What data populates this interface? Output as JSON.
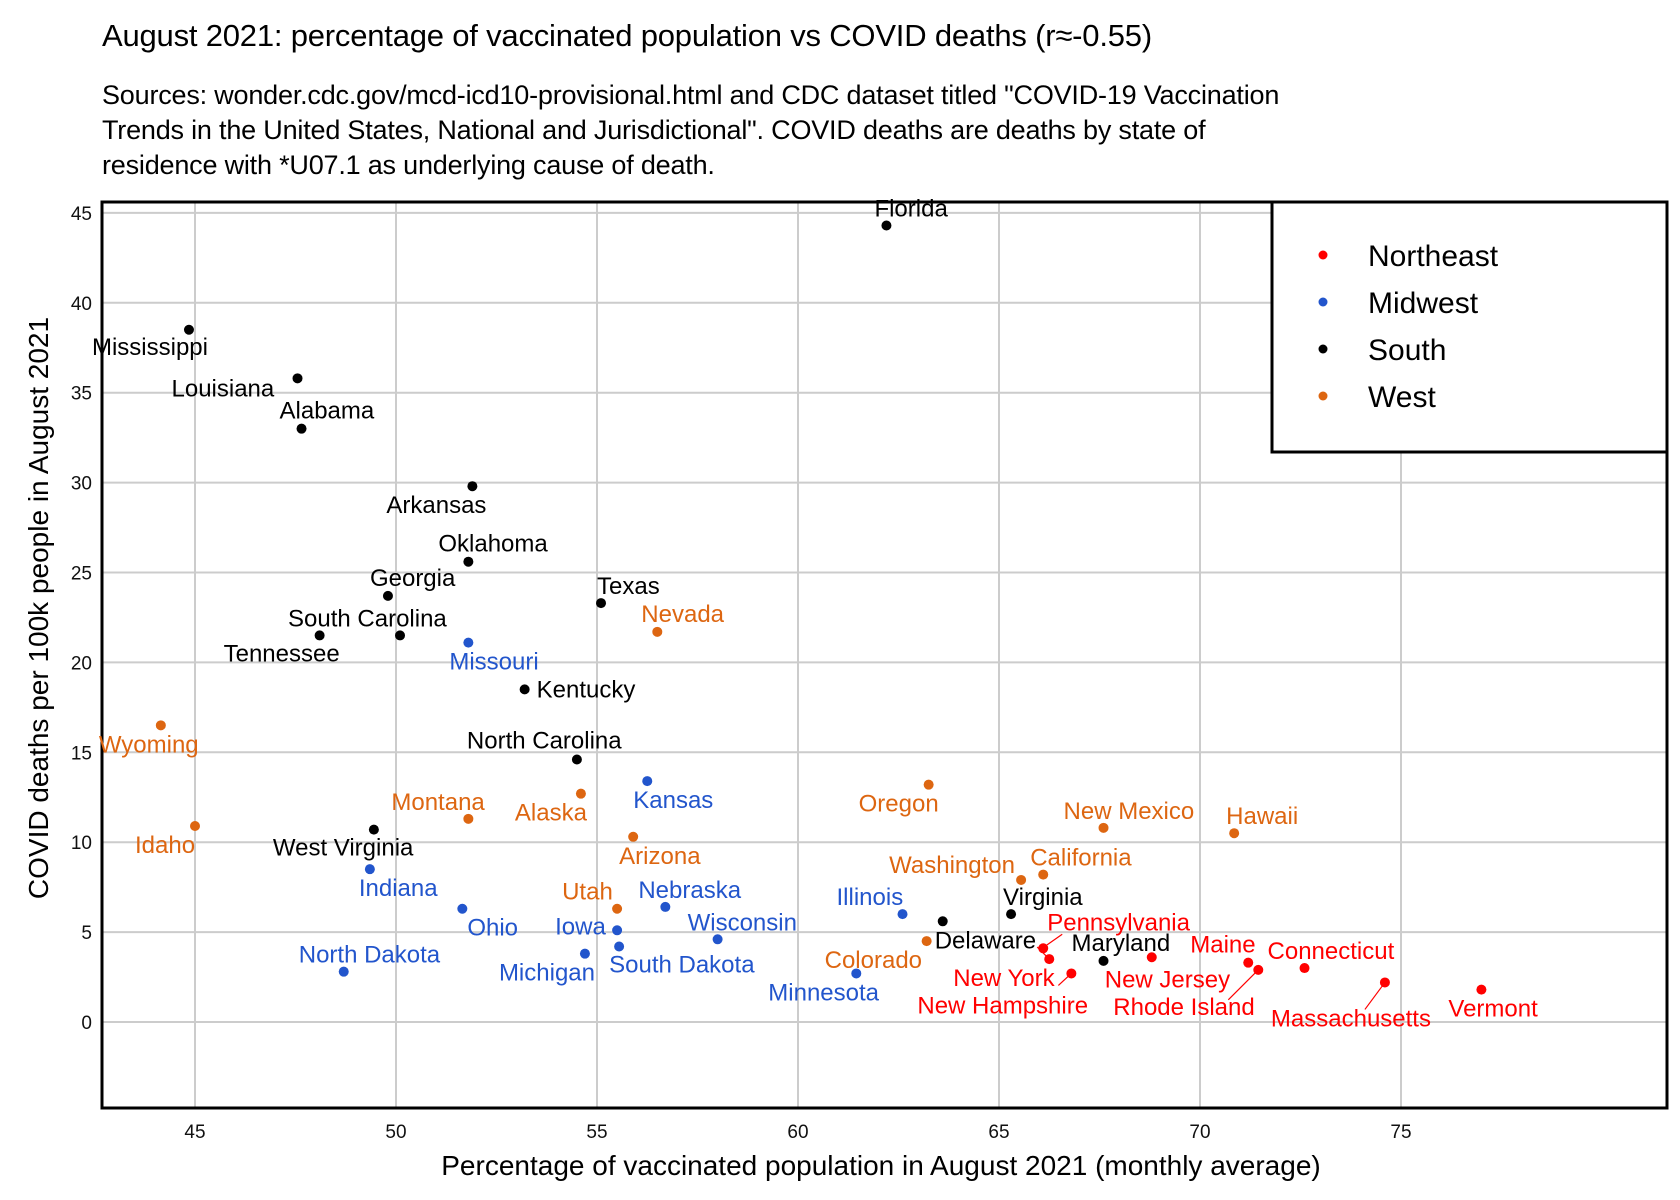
{
  "title": "August 2021: percentage of vaccinated population vs COVID deaths (r≈-0.55)",
  "subtitle": "Sources: wonder.cdc.gov/mcd-icd10-provisional.html and CDC dataset titled \"COVID-19 Vaccination\nTrends in the United States, National and Jurisdictional\". COVID deaths are deaths by state of\nresidence with *U07.1 as underlying cause of death.",
  "chart_data": {
    "type": "scatter",
    "title": "August 2021: percentage of vaccinated population vs COVID deaths (r≈-0.55)",
    "xlabel": "Percentage of vaccinated population in August 2021 (monthly average)",
    "ylabel": "COVID deaths per 100k people in August 2021",
    "xlim": [
      42.5,
      78.6
    ],
    "ylim": [
      -0.4,
      46.3
    ],
    "xticks": [
      45,
      50,
      55,
      60,
      65,
      70,
      75
    ],
    "yticks": [
      0,
      5,
      10,
      15,
      20,
      25,
      30,
      35,
      40,
      45
    ],
    "grid": true,
    "legend_position": "top-right",
    "legend": [
      {
        "name": "Northeast",
        "color": "#ff0000"
      },
      {
        "name": "Midwest",
        "color": "#2255cc"
      },
      {
        "name": "South",
        "color": "#000000"
      },
      {
        "name": "West",
        "color": "#dd6611"
      }
    ],
    "points": [
      {
        "state": "Florida",
        "region": "South",
        "x": 62.2,
        "y": 44.3
      },
      {
        "state": "Mississippi",
        "region": "South",
        "x": 44.85,
        "y": 38.5
      },
      {
        "state": "Louisiana",
        "region": "South",
        "x": 47.55,
        "y": 35.8
      },
      {
        "state": "Alabama",
        "region": "South",
        "x": 47.65,
        "y": 33.0
      },
      {
        "state": "Arkansas",
        "region": "South",
        "x": 51.9,
        "y": 29.8
      },
      {
        "state": "Oklahoma",
        "region": "South",
        "x": 51.8,
        "y": 25.6
      },
      {
        "state": "Georgia",
        "region": "South",
        "x": 49.8,
        "y": 23.7
      },
      {
        "state": "Texas",
        "region": "South",
        "x": 55.1,
        "y": 23.3
      },
      {
        "state": "South Carolina",
        "region": "South",
        "x": 50.1,
        "y": 21.5
      },
      {
        "state": "Tennessee",
        "region": "South",
        "x": 48.1,
        "y": 21.5
      },
      {
        "state": "Kentucky",
        "region": "South",
        "x": 53.2,
        "y": 18.5
      },
      {
        "state": "North Carolina",
        "region": "South",
        "x": 54.5,
        "y": 14.6
      },
      {
        "state": "West Virginia",
        "region": "South",
        "x": 49.45,
        "y": 10.7
      },
      {
        "state": "Delaware",
        "region": "South",
        "x": 63.6,
        "y": 5.6
      },
      {
        "state": "Virginia",
        "region": "South",
        "x": 65.3,
        "y": 6.0
      },
      {
        "state": "Maryland",
        "region": "South",
        "x": 67.6,
        "y": 3.4
      },
      {
        "state": "Missouri",
        "region": "Midwest",
        "x": 51.8,
        "y": 21.1
      },
      {
        "state": "Kansas",
        "region": "Midwest",
        "x": 56.25,
        "y": 13.4
      },
      {
        "state": "Indiana",
        "region": "Midwest",
        "x": 49.35,
        "y": 8.5
      },
      {
        "state": "Ohio",
        "region": "Midwest",
        "x": 51.65,
        "y": 6.3
      },
      {
        "state": "Nebraska",
        "region": "Midwest",
        "x": 56.7,
        "y": 6.4
      },
      {
        "state": "Iowa",
        "region": "Midwest",
        "x": 55.5,
        "y": 5.1
      },
      {
        "state": "Illinois",
        "region": "Midwest",
        "x": 62.6,
        "y": 6.0
      },
      {
        "state": "Wisconsin",
        "region": "Midwest",
        "x": 58.0,
        "y": 4.6
      },
      {
        "state": "Michigan",
        "region": "Midwest",
        "x": 54.7,
        "y": 3.8
      },
      {
        "state": "South Dakota",
        "region": "Midwest",
        "x": 55.55,
        "y": 4.2
      },
      {
        "state": "North Dakota",
        "region": "Midwest",
        "x": 48.7,
        "y": 2.8
      },
      {
        "state": "Minnesota",
        "region": "Midwest",
        "x": 61.45,
        "y": 2.7
      },
      {
        "state": "Nevada",
        "region": "West",
        "x": 56.5,
        "y": 21.7
      },
      {
        "state": "Wyoming",
        "region": "West",
        "x": 44.15,
        "y": 16.5
      },
      {
        "state": "Alaska",
        "region": "West",
        "x": 54.6,
        "y": 12.7
      },
      {
        "state": "Montana",
        "region": "West",
        "x": 51.8,
        "y": 11.3
      },
      {
        "state": "Idaho",
        "region": "West",
        "x": 45.0,
        "y": 10.9
      },
      {
        "state": "Oregon",
        "region": "West",
        "x": 63.25,
        "y": 13.2
      },
      {
        "state": "Arizona",
        "region": "West",
        "x": 55.9,
        "y": 10.3
      },
      {
        "state": "New Mexico",
        "region": "West",
        "x": 67.6,
        "y": 10.8
      },
      {
        "state": "Hawaii",
        "region": "West",
        "x": 70.85,
        "y": 10.5
      },
      {
        "state": "Utah",
        "region": "West",
        "x": 55.5,
        "y": 6.3
      },
      {
        "state": "Washington",
        "region": "West",
        "x": 65.55,
        "y": 7.9
      },
      {
        "state": "California",
        "region": "West",
        "x": 66.1,
        "y": 8.2
      },
      {
        "state": "Colorado",
        "region": "West",
        "x": 63.2,
        "y": 4.5
      },
      {
        "state": "Pennsylvania",
        "region": "Northeast",
        "x": 66.1,
        "y": 4.1
      },
      {
        "state": "New York",
        "region": "Northeast",
        "x": 66.25,
        "y": 3.5
      },
      {
        "state": "New Hampshire",
        "region": "Northeast",
        "x": 66.8,
        "y": 2.7
      },
      {
        "state": "New Jersey",
        "region": "Northeast",
        "x": 68.8,
        "y": 3.6
      },
      {
        "state": "Maine",
        "region": "Northeast",
        "x": 71.2,
        "y": 3.3
      },
      {
        "state": "Rhode Island",
        "region": "Northeast",
        "x": 71.45,
        "y": 2.9
      },
      {
        "state": "Connecticut",
        "region": "Northeast",
        "x": 72.6,
        "y": 3.0
      },
      {
        "state": "Massachusetts",
        "region": "Northeast",
        "x": 74.6,
        "y": 2.2
      },
      {
        "state": "Vermont",
        "region": "Northeast",
        "x": 77.0,
        "y": 1.8
      }
    ]
  }
}
